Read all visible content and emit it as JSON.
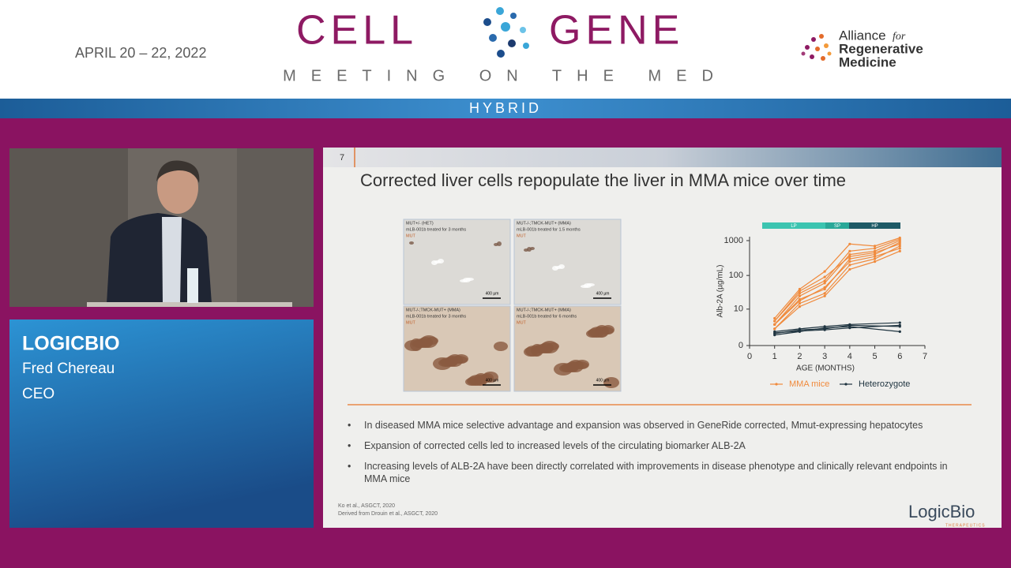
{
  "header": {
    "date": "APRIL 20 – 22, 2022",
    "logo_left": "CELL",
    "logo_right": "GENE",
    "tagline": "MEETING ON THE MED",
    "sponsor": {
      "line1": "Alliance",
      "for": "for",
      "line2": "Regenerative",
      "line3": "Medicine"
    }
  },
  "banner": "HYBRID",
  "speaker": {
    "organization": "LOGICBIO",
    "name": "Fred Chereau",
    "role": "CEO"
  },
  "slide": {
    "number": "7",
    "title": "Corrected liver cells repopulate the liver in MMA mice over time",
    "panels": [
      {
        "caption": [
          "MUT+/- (HET)",
          "mLB-001b treated for 3 months",
          "MUT"
        ],
        "scale": "400 µm"
      },
      {
        "caption": [
          "MUT-/-;TMCK-MUT+ (MMA)",
          "mLB-001b treated for 1.5 months",
          "MUT"
        ],
        "scale": "400 µm"
      },
      {
        "caption": [
          "MUT-/-;TMCK-MUT+ (MMA)",
          "mLB-001b treated for 3 months",
          "MUT"
        ],
        "scale": "400 µm"
      },
      {
        "caption": [
          "MUT-/-;TMCK-MUT+ (MMA)",
          "mLB-001b treated for 6 months",
          "MUT"
        ],
        "scale": "400 µm"
      }
    ],
    "chart_data": {
      "type": "line",
      "x_label": "AGE (MONTHS)",
      "y_label": "Alb-2A (µg/mL)",
      "y_scale": "log",
      "xlim": [
        0,
        7
      ],
      "xticks": [
        0,
        1,
        2,
        3,
        4,
        5,
        6,
        7
      ],
      "ylim": [
        0,
        1000
      ],
      "yticks": [
        0,
        10,
        100,
        1000
      ],
      "phases": [
        "LP",
        "SP",
        "HP"
      ],
      "groups": [
        {
          "name": "MMA mice",
          "color": "#f08a3c",
          "x": [
            1,
            2,
            3,
            4,
            5,
            6
          ],
          "lines": [
            [
              3,
              20,
              40,
              300,
              400,
              900
            ],
            [
              4,
              30,
              70,
              500,
              600,
              1100
            ],
            [
              2,
              15,
              30,
              200,
              300,
              700
            ],
            [
              5,
              40,
              130,
              800,
              700,
              1200
            ],
            [
              3,
              25,
              60,
              400,
              500,
              1000
            ],
            [
              2,
              12,
              25,
              150,
              250,
              500
            ],
            [
              4,
              35,
              90,
              350,
              450,
              800
            ],
            [
              3,
              18,
              45,
              250,
              350,
              600
            ]
          ]
        },
        {
          "name": "Heterozygote",
          "color": "#1f3440",
          "x": [
            1,
            2,
            3,
            4,
            6
          ],
          "lines": [
            [
              1.5,
              2,
              2.5,
              3,
              3.5
            ],
            [
              1.2,
              1.8,
              2,
              2.8,
              2.5
            ],
            [
              1,
              1.5,
              2.2,
              2.5,
              1.5
            ],
            [
              1.3,
              1.6,
              1.8,
              2.2,
              2.8
            ]
          ]
        }
      ]
    },
    "bullets": [
      "In diseased MMA mice selective advantage and expansion was observed in GeneRide corrected, Mmut-expressing hepatocytes",
      "Expansion of corrected cells led to increased levels of the circulating biomarker ALB-2A",
      "Increasing levels of ALB-2A have been directly correlated with improvements in disease phenotype and clinically relevant endpoints in MMA mice"
    ],
    "bullet_symbol": "•",
    "references": [
      "Ko et al., ASGCT, 2020",
      "Derived from Drouin et al., ASGCT, 2020"
    ],
    "logo": "LogicBio",
    "logo_sub": "THERAPEUTICS"
  }
}
